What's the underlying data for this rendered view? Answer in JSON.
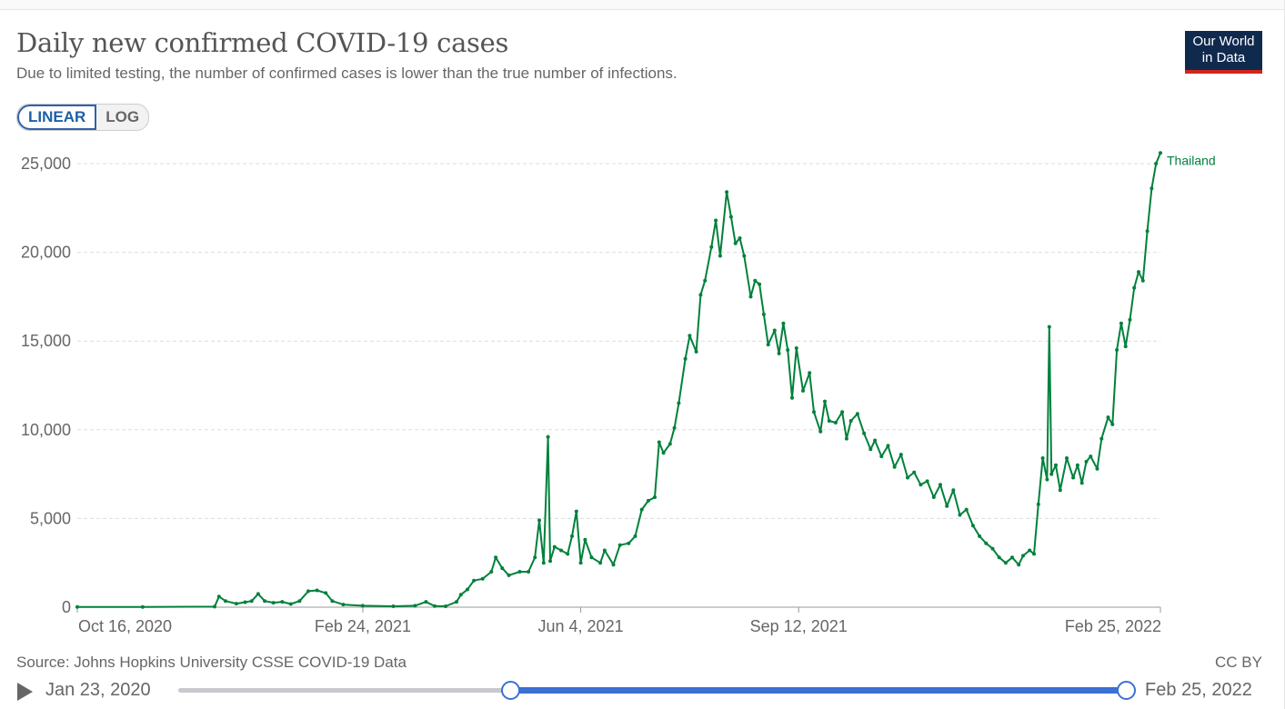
{
  "header": {
    "title": "Daily new confirmed COVID-19 cases",
    "subtitle": "Due to limited testing, the number of confirmed cases is lower than the true number of infections."
  },
  "logo": {
    "line1": "Our World",
    "line2": "in Data"
  },
  "scale_toggle": {
    "linear_label": "LINEAR",
    "log_label": "LOG",
    "selected": "LINEAR"
  },
  "footer": {
    "source": "Source: Johns Hopkins University CSSE COVID-19 Data",
    "license": "CC BY"
  },
  "timeline": {
    "start_label": "Jan 23, 2020",
    "end_label": "Feb 25, 2022",
    "selected_start_fraction": 0.35,
    "selected_end_fraction": 1.0
  },
  "colors": {
    "series": "#00813b",
    "accent": "#3b70d4",
    "logo_bg": "#102a4e",
    "logo_bar": "#ce261e"
  },
  "chart_data": {
    "type": "line",
    "title": "Daily new confirmed COVID-19 cases",
    "xlabel": "",
    "ylabel": "",
    "x_range": [
      "2020-10-16",
      "2022-02-25"
    ],
    "ylim": [
      0,
      25000
    ],
    "y_ticks": [
      0,
      5000,
      10000,
      15000,
      20000,
      25000
    ],
    "y_tick_labels": [
      "0",
      "5,000",
      "10,000",
      "15,000",
      "20,000",
      "25,000"
    ],
    "x_ticks": [
      "2020-10-16",
      "2021-02-24",
      "2021-06-04",
      "2021-09-12",
      "2022-02-25"
    ],
    "x_tick_labels": [
      "Oct 16, 2020",
      "Feb 24, 2021",
      "Jun 4, 2021",
      "Sep 12, 2021",
      "Feb 25, 2022"
    ],
    "grid": "horizontal dashed",
    "series": [
      {
        "name": "Thailand",
        "points": [
          [
            "2020-10-16",
            10
          ],
          [
            "2020-11-15",
            10
          ],
          [
            "2020-12-18",
            30
          ],
          [
            "2020-12-20",
            600
          ],
          [
            "2020-12-23",
            350
          ],
          [
            "2020-12-28",
            200
          ],
          [
            "2021-01-01",
            280
          ],
          [
            "2021-01-04",
            350
          ],
          [
            "2021-01-07",
            750
          ],
          [
            "2021-01-10",
            350
          ],
          [
            "2021-01-14",
            250
          ],
          [
            "2021-01-18",
            300
          ],
          [
            "2021-01-22",
            180
          ],
          [
            "2021-01-26",
            350
          ],
          [
            "2021-01-30",
            900
          ],
          [
            "2021-02-03",
            950
          ],
          [
            "2021-02-07",
            800
          ],
          [
            "2021-02-10",
            350
          ],
          [
            "2021-02-15",
            150
          ],
          [
            "2021-02-24",
            80
          ],
          [
            "2021-03-10",
            50
          ],
          [
            "2021-03-20",
            80
          ],
          [
            "2021-03-25",
            300
          ],
          [
            "2021-03-29",
            60
          ],
          [
            "2021-04-03",
            50
          ],
          [
            "2021-04-08",
            300
          ],
          [
            "2021-04-10",
            700
          ],
          [
            "2021-04-13",
            1000
          ],
          [
            "2021-04-16",
            1500
          ],
          [
            "2021-04-20",
            1600
          ],
          [
            "2021-04-24",
            2000
          ],
          [
            "2021-04-26",
            2800
          ],
          [
            "2021-04-29",
            2200
          ],
          [
            "2021-05-02",
            1800
          ],
          [
            "2021-05-07",
            2000
          ],
          [
            "2021-05-11",
            2000
          ],
          [
            "2021-05-14",
            2800
          ],
          [
            "2021-05-16",
            4900
          ],
          [
            "2021-05-18",
            2500
          ],
          [
            "2021-05-20",
            9600
          ],
          [
            "2021-05-21",
            2600
          ],
          [
            "2021-05-23",
            3400
          ],
          [
            "2021-05-26",
            3200
          ],
          [
            "2021-05-29",
            3000
          ],
          [
            "2021-05-31",
            4000
          ],
          [
            "2021-06-02",
            5400
          ],
          [
            "2021-06-04",
            2500
          ],
          [
            "2021-06-06",
            3800
          ],
          [
            "2021-06-09",
            2800
          ],
          [
            "2021-06-13",
            2500
          ],
          [
            "2021-06-15",
            3200
          ],
          [
            "2021-06-19",
            2400
          ],
          [
            "2021-06-22",
            3500
          ],
          [
            "2021-06-26",
            3600
          ],
          [
            "2021-06-29",
            4000
          ],
          [
            "2021-07-02",
            5500
          ],
          [
            "2021-07-05",
            6000
          ],
          [
            "2021-07-08",
            6200
          ],
          [
            "2021-07-10",
            9300
          ],
          [
            "2021-07-12",
            8700
          ],
          [
            "2021-07-15",
            9200
          ],
          [
            "2021-07-17",
            10100
          ],
          [
            "2021-07-19",
            11500
          ],
          [
            "2021-07-22",
            14000
          ],
          [
            "2021-07-24",
            15300
          ],
          [
            "2021-07-27",
            14400
          ],
          [
            "2021-07-29",
            17600
          ],
          [
            "2021-07-31",
            18400
          ],
          [
            "2021-08-03",
            20300
          ],
          [
            "2021-08-05",
            21800
          ],
          [
            "2021-08-07",
            19800
          ],
          [
            "2021-08-10",
            23400
          ],
          [
            "2021-08-12",
            22000
          ],
          [
            "2021-08-14",
            20500
          ],
          [
            "2021-08-16",
            20800
          ],
          [
            "2021-08-18",
            19800
          ],
          [
            "2021-08-21",
            17500
          ],
          [
            "2021-08-23",
            18400
          ],
          [
            "2021-08-25",
            18200
          ],
          [
            "2021-08-27",
            16500
          ],
          [
            "2021-08-29",
            14800
          ],
          [
            "2021-09-01",
            15600
          ],
          [
            "2021-09-03",
            14300
          ],
          [
            "2021-09-05",
            16000
          ],
          [
            "2021-09-07",
            14500
          ],
          [
            "2021-09-09",
            11800
          ],
          [
            "2021-09-11",
            14600
          ],
          [
            "2021-09-14",
            12200
          ],
          [
            "2021-09-17",
            13200
          ],
          [
            "2021-09-19",
            11000
          ],
          [
            "2021-09-22",
            9900
          ],
          [
            "2021-09-24",
            11600
          ],
          [
            "2021-09-26",
            10500
          ],
          [
            "2021-09-29",
            10400
          ],
          [
            "2021-10-02",
            11000
          ],
          [
            "2021-10-04",
            9500
          ],
          [
            "2021-10-06",
            10500
          ],
          [
            "2021-10-09",
            10900
          ],
          [
            "2021-10-12",
            9800
          ],
          [
            "2021-10-15",
            8900
          ],
          [
            "2021-10-17",
            9400
          ],
          [
            "2021-10-20",
            8500
          ],
          [
            "2021-10-23",
            9100
          ],
          [
            "2021-10-26",
            7900
          ],
          [
            "2021-10-29",
            8600
          ],
          [
            "2021-11-01",
            7300
          ],
          [
            "2021-11-04",
            7600
          ],
          [
            "2021-11-07",
            6900
          ],
          [
            "2021-11-10",
            7100
          ],
          [
            "2021-11-13",
            6200
          ],
          [
            "2021-11-16",
            6900
          ],
          [
            "2021-11-19",
            5700
          ],
          [
            "2021-11-22",
            6600
          ],
          [
            "2021-11-25",
            5200
          ],
          [
            "2021-11-28",
            5500
          ],
          [
            "2021-12-01",
            4600
          ],
          [
            "2021-12-04",
            4000
          ],
          [
            "2021-12-07",
            3600
          ],
          [
            "2021-12-10",
            3300
          ],
          [
            "2021-12-13",
            2800
          ],
          [
            "2021-12-16",
            2500
          ],
          [
            "2021-12-19",
            2800
          ],
          [
            "2021-12-22",
            2400
          ],
          [
            "2021-12-24",
            2900
          ],
          [
            "2021-12-27",
            3200
          ],
          [
            "2021-12-29",
            3000
          ],
          [
            "2021-12-31",
            5800
          ],
          [
            "2022-01-02",
            8400
          ],
          [
            "2022-01-04",
            7200
          ],
          [
            "2022-01-05",
            15800
          ],
          [
            "2022-01-06",
            7500
          ],
          [
            "2022-01-08",
            8000
          ],
          [
            "2022-01-10",
            6600
          ],
          [
            "2022-01-13",
            8400
          ],
          [
            "2022-01-16",
            7300
          ],
          [
            "2022-01-18",
            8000
          ],
          [
            "2022-01-20",
            7000
          ],
          [
            "2022-01-22",
            8200
          ],
          [
            "2022-01-24",
            8500
          ],
          [
            "2022-01-27",
            7800
          ],
          [
            "2022-01-29",
            9500
          ],
          [
            "2022-02-01",
            10700
          ],
          [
            "2022-02-03",
            10300
          ],
          [
            "2022-02-05",
            14500
          ],
          [
            "2022-02-07",
            16000
          ],
          [
            "2022-02-09",
            14700
          ],
          [
            "2022-02-11",
            16200
          ],
          [
            "2022-02-13",
            18000
          ],
          [
            "2022-02-15",
            18900
          ],
          [
            "2022-02-17",
            18400
          ],
          [
            "2022-02-19",
            21200
          ],
          [
            "2022-02-21",
            23600
          ],
          [
            "2022-02-23",
            25000
          ],
          [
            "2022-02-25",
            25600
          ]
        ]
      }
    ]
  }
}
